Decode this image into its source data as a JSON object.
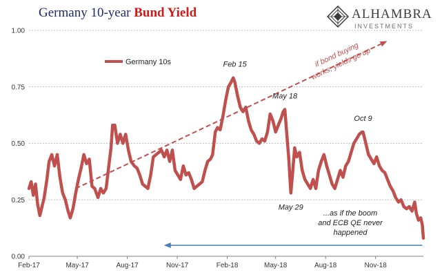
{
  "header": {
    "title_part1": "Germany 10-year ",
    "title_part2": "Bund Yield",
    "brand_name": "ALHAMBRA",
    "brand_sub": "INVESTMENTS"
  },
  "colors": {
    "series": "#c0504d",
    "arrow_blue": "#4a7ebb",
    "grid": "#a6a6a6",
    "title_blue": "#1f2b6e",
    "title_red": "#d21a1a"
  },
  "chart_data": {
    "type": "line",
    "title": "Germany 10-year Bund Yield",
    "xlabel": "",
    "ylabel": "",
    "ylim": [
      0,
      1.0
    ],
    "yticks": [
      "0.00",
      "0.25",
      "0.50",
      "0.75",
      "1.00"
    ],
    "xticks": [
      "Feb-17",
      "May-17",
      "Aug-17",
      "Nov-17",
      "Feb-18",
      "May-18",
      "Aug-18",
      "Nov-18"
    ],
    "xrange": [
      "2017-02-01",
      "2019-01-28"
    ],
    "grid": true,
    "legend_position": "top-left",
    "series": [
      {
        "name": "Germany 10s",
        "points": [
          [
            "2017-02-01",
            0.3
          ],
          [
            "2017-02-05",
            0.33
          ],
          [
            "2017-02-09",
            0.27
          ],
          [
            "2017-02-13",
            0.32
          ],
          [
            "2017-02-17",
            0.23
          ],
          [
            "2017-02-21",
            0.18
          ],
          [
            "2017-02-25",
            0.22
          ],
          [
            "2017-03-01",
            0.26
          ],
          [
            "2017-03-06",
            0.34
          ],
          [
            "2017-03-10",
            0.42
          ],
          [
            "2017-03-15",
            0.45
          ],
          [
            "2017-03-20",
            0.4
          ],
          [
            "2017-03-25",
            0.45
          ],
          [
            "2017-03-30",
            0.35
          ],
          [
            "2017-04-04",
            0.28
          ],
          [
            "2017-04-09",
            0.25
          ],
          [
            "2017-04-14",
            0.2
          ],
          [
            "2017-04-18",
            0.17
          ],
          [
            "2017-04-23",
            0.21
          ],
          [
            "2017-04-28",
            0.28
          ],
          [
            "2017-05-03",
            0.34
          ],
          [
            "2017-05-08",
            0.39
          ],
          [
            "2017-05-13",
            0.45
          ],
          [
            "2017-05-18",
            0.41
          ],
          [
            "2017-05-23",
            0.43
          ],
          [
            "2017-05-28",
            0.31
          ],
          [
            "2017-06-02",
            0.3
          ],
          [
            "2017-06-08",
            0.26
          ],
          [
            "2017-06-13",
            0.3
          ],
          [
            "2017-06-18",
            0.28
          ],
          [
            "2017-06-23",
            0.3
          ],
          [
            "2017-06-28",
            0.4
          ],
          [
            "2017-07-02",
            0.48
          ],
          [
            "2017-07-05",
            0.58
          ],
          [
            "2017-07-09",
            0.58
          ],
          [
            "2017-07-14",
            0.5
          ],
          [
            "2017-07-19",
            0.54
          ],
          [
            "2017-07-24",
            0.5
          ],
          [
            "2017-07-29",
            0.54
          ],
          [
            "2017-08-03",
            0.47
          ],
          [
            "2017-08-08",
            0.42
          ],
          [
            "2017-08-14",
            0.4
          ],
          [
            "2017-08-19",
            0.39
          ],
          [
            "2017-08-24",
            0.36
          ],
          [
            "2017-08-29",
            0.32
          ],
          [
            "2017-09-03",
            0.31
          ],
          [
            "2017-09-08",
            0.3
          ],
          [
            "2017-09-13",
            0.36
          ],
          [
            "2017-09-18",
            0.44
          ],
          [
            "2017-09-23",
            0.45
          ],
          [
            "2017-09-28",
            0.46
          ],
          [
            "2017-10-03",
            0.47
          ],
          [
            "2017-10-08",
            0.44
          ],
          [
            "2017-10-13",
            0.47
          ],
          [
            "2017-10-18",
            0.42
          ],
          [
            "2017-10-23",
            0.47
          ],
          [
            "2017-10-28",
            0.38
          ],
          [
            "2017-11-02",
            0.36
          ],
          [
            "2017-11-07",
            0.34
          ],
          [
            "2017-11-12",
            0.4
          ],
          [
            "2017-11-17",
            0.36
          ],
          [
            "2017-11-22",
            0.37
          ],
          [
            "2017-11-27",
            0.34
          ],
          [
            "2017-12-02",
            0.3
          ],
          [
            "2017-12-07",
            0.31
          ],
          [
            "2017-12-12",
            0.32
          ],
          [
            "2017-12-17",
            0.33
          ],
          [
            "2017-12-22",
            0.38
          ],
          [
            "2017-12-27",
            0.42
          ],
          [
            "2018-01-01",
            0.43
          ],
          [
            "2018-01-05",
            0.45
          ],
          [
            "2018-01-10",
            0.55
          ],
          [
            "2018-01-14",
            0.57
          ],
          [
            "2018-01-19",
            0.56
          ],
          [
            "2018-01-24",
            0.62
          ],
          [
            "2018-01-29",
            0.69
          ],
          [
            "2018-02-03",
            0.75
          ],
          [
            "2018-02-08",
            0.77
          ],
          [
            "2018-02-12",
            0.79
          ],
          [
            "2018-02-15",
            0.77
          ],
          [
            "2018-02-20",
            0.71
          ],
          [
            "2018-02-25",
            0.66
          ],
          [
            "2018-03-02",
            0.64
          ],
          [
            "2018-03-07",
            0.66
          ],
          [
            "2018-03-12",
            0.6
          ],
          [
            "2018-03-17",
            0.56
          ],
          [
            "2018-03-22",
            0.54
          ],
          [
            "2018-03-27",
            0.51
          ],
          [
            "2018-04-01",
            0.5
          ],
          [
            "2018-04-06",
            0.52
          ],
          [
            "2018-04-11",
            0.51
          ],
          [
            "2018-04-16",
            0.55
          ],
          [
            "2018-04-21",
            0.63
          ],
          [
            "2018-04-26",
            0.6
          ],
          [
            "2018-05-01",
            0.55
          ],
          [
            "2018-05-06",
            0.58
          ],
          [
            "2018-05-11",
            0.61
          ],
          [
            "2018-05-15",
            0.64
          ],
          [
            "2018-05-18",
            0.65
          ],
          [
            "2018-05-22",
            0.53
          ],
          [
            "2018-05-25",
            0.44
          ],
          [
            "2018-05-29",
            0.28
          ],
          [
            "2018-06-01",
            0.36
          ],
          [
            "2018-06-05",
            0.48
          ],
          [
            "2018-06-09",
            0.44
          ],
          [
            "2018-06-14",
            0.46
          ],
          [
            "2018-06-19",
            0.38
          ],
          [
            "2018-06-24",
            0.34
          ],
          [
            "2018-06-29",
            0.32
          ],
          [
            "2018-07-04",
            0.3
          ],
          [
            "2018-07-09",
            0.34
          ],
          [
            "2018-07-14",
            0.3
          ],
          [
            "2018-07-19",
            0.38
          ],
          [
            "2018-07-24",
            0.42
          ],
          [
            "2018-07-29",
            0.45
          ],
          [
            "2018-08-03",
            0.4
          ],
          [
            "2018-08-08",
            0.36
          ],
          [
            "2018-08-13",
            0.32
          ],
          [
            "2018-08-18",
            0.3
          ],
          [
            "2018-08-23",
            0.34
          ],
          [
            "2018-08-28",
            0.38
          ],
          [
            "2018-09-02",
            0.35
          ],
          [
            "2018-09-07",
            0.4
          ],
          [
            "2018-09-12",
            0.42
          ],
          [
            "2018-09-17",
            0.46
          ],
          [
            "2018-09-22",
            0.5
          ],
          [
            "2018-09-27",
            0.52
          ],
          [
            "2018-10-02",
            0.54
          ],
          [
            "2018-10-07",
            0.55
          ],
          [
            "2018-10-09",
            0.55
          ],
          [
            "2018-10-14",
            0.5
          ],
          [
            "2018-10-19",
            0.45
          ],
          [
            "2018-10-24",
            0.43
          ],
          [
            "2018-10-29",
            0.41
          ],
          [
            "2018-11-03",
            0.44
          ],
          [
            "2018-11-08",
            0.4
          ],
          [
            "2018-11-13",
            0.38
          ],
          [
            "2018-11-18",
            0.37
          ],
          [
            "2018-11-23",
            0.34
          ],
          [
            "2018-11-28",
            0.31
          ],
          [
            "2018-12-03",
            0.29
          ],
          [
            "2018-12-08",
            0.26
          ],
          [
            "2018-12-13",
            0.24
          ],
          [
            "2018-12-18",
            0.25
          ],
          [
            "2018-12-23",
            0.22
          ],
          [
            "2018-12-28",
            0.21
          ],
          [
            "2019-01-02",
            0.22
          ],
          [
            "2019-01-07",
            0.2
          ],
          [
            "2019-01-12",
            0.24
          ],
          [
            "2019-01-15",
            0.19
          ],
          [
            "2019-01-19",
            0.16
          ],
          [
            "2019-01-23",
            0.17
          ],
          [
            "2019-01-26",
            0.14
          ],
          [
            "2019-01-28",
            0.08
          ]
        ]
      }
    ],
    "annotations": [
      {
        "text": "Feb 15",
        "x": "2018-02-15",
        "y": 0.79,
        "position": "above"
      },
      {
        "text": "May 18",
        "x": "2018-05-18",
        "y": 0.65,
        "position": "above"
      },
      {
        "text": "Oct 9",
        "x": "2018-10-09",
        "y": 0.55,
        "position": "above"
      },
      {
        "text": "May 29",
        "x": "2018-05-29",
        "y": 0.28,
        "position": "below"
      }
    ],
    "arrow_up_label_lines": [
      "if bond buying",
      "works, yields go up"
    ],
    "arrow_up": {
      "from": [
        "2017-04-28",
        0.3
      ],
      "to": [
        "2018-11-20",
        0.95
      ]
    },
    "arrow_left_label_lines": [
      "...as if the boom",
      "and ECB QE never",
      "happened"
    ],
    "arrow_left": {
      "from": [
        "2019-01-26",
        0.07
      ],
      "to": [
        "2017-10-10",
        0.07
      ]
    }
  }
}
